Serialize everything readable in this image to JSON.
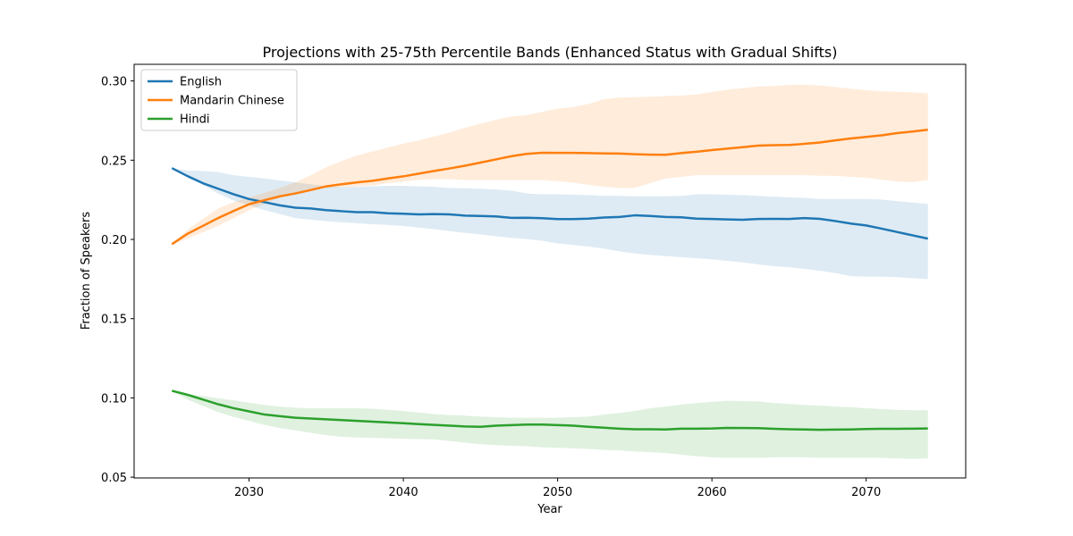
{
  "chart_data": {
    "type": "line",
    "title": "Projections with 25-75th Percentile Bands (Enhanced Status with Gradual Shifts)",
    "xlabel": "Year",
    "ylabel": "Fraction of Speakers",
    "xlim": [
      2022.55,
      2076.45
    ],
    "ylim": [
      0.0495,
      0.3105
    ],
    "xticks": [
      2030,
      2040,
      2050,
      2060,
      2070
    ],
    "yticks": [
      0.05,
      0.1,
      0.15,
      0.2,
      0.25,
      0.3
    ],
    "ytick_labels": [
      "0.05",
      "0.10",
      "0.15",
      "0.20",
      "0.25",
      "0.30"
    ],
    "grid": false,
    "legend_position": "upper left",
    "x": [
      2025,
      2026,
      2027,
      2028,
      2029,
      2030,
      2031,
      2032,
      2033,
      2034,
      2035,
      2036,
      2037,
      2038,
      2039,
      2040,
      2041,
      2042,
      2043,
      2044,
      2045,
      2046,
      2047,
      2048,
      2049,
      2050,
      2051,
      2052,
      2053,
      2054,
      2055,
      2056,
      2057,
      2058,
      2059,
      2060,
      2061,
      2062,
      2063,
      2064,
      2065,
      2066,
      2067,
      2068,
      2069,
      2070,
      2071,
      2072,
      2073,
      2074
    ],
    "series": [
      {
        "name": "English",
        "color": "#1f77b4",
        "values": [
          0.245,
          0.24,
          0.2355,
          0.232,
          0.2285,
          0.2255,
          0.2235,
          0.2215,
          0.22,
          0.2195,
          0.2185,
          0.2178,
          0.2172,
          0.2172,
          0.2165,
          0.2162,
          0.2158,
          0.216,
          0.2158,
          0.215,
          0.2148,
          0.2145,
          0.2136,
          0.2137,
          0.2134,
          0.2128,
          0.2128,
          0.2131,
          0.2138,
          0.2142,
          0.2152,
          0.2148,
          0.2142,
          0.214,
          0.2131,
          0.2129,
          0.2126,
          0.2124,
          0.2129,
          0.213,
          0.2129,
          0.2135,
          0.213,
          0.2116,
          0.21,
          0.2088,
          0.2068,
          0.2047,
          0.2026,
          0.2005
        ],
        "p25": [
          0.245,
          0.2405,
          0.2345,
          0.229,
          0.2245,
          0.2215,
          0.2185,
          0.216,
          0.2135,
          0.2125,
          0.2115,
          0.2108,
          0.2102,
          0.2096,
          0.2092,
          0.2085,
          0.2075,
          0.2065,
          0.2052,
          0.2042,
          0.2032,
          0.202,
          0.201,
          0.2002,
          0.1992,
          0.1975,
          0.1965,
          0.1955,
          0.1942,
          0.1925,
          0.1912,
          0.1902,
          0.1895,
          0.1888,
          0.1882,
          0.1875,
          0.1865,
          0.1855,
          0.1842,
          0.1832,
          0.1825,
          0.1815,
          0.1802,
          0.1788,
          0.1768,
          0.1765,
          0.1765,
          0.1762,
          0.1755,
          0.175
        ],
        "p75": [
          0.245,
          0.2435,
          0.2432,
          0.2425,
          0.2405,
          0.2395,
          0.2385,
          0.2372,
          0.236,
          0.2348,
          0.2335,
          0.233,
          0.2332,
          0.2335,
          0.2338,
          0.2338,
          0.2335,
          0.2332,
          0.2325,
          0.2322,
          0.232,
          0.2315,
          0.2308,
          0.229,
          0.2285,
          0.2285,
          0.2282,
          0.228,
          0.2275,
          0.2275,
          0.2272,
          0.2272,
          0.2272,
          0.2275,
          0.2285,
          0.2285,
          0.2282,
          0.228,
          0.2275,
          0.227,
          0.2265,
          0.2262,
          0.2255,
          0.2255,
          0.2255,
          0.2255,
          0.2252,
          0.2242,
          0.2232,
          0.2225
        ]
      },
      {
        "name": "Mandarin Chinese",
        "color": "#ff7f0e",
        "values": [
          0.197,
          0.2035,
          0.2085,
          0.2135,
          0.218,
          0.2222,
          0.2248,
          0.2272,
          0.229,
          0.2312,
          0.2335,
          0.2348,
          0.236,
          0.237,
          0.2385,
          0.2398,
          0.2415,
          0.2432,
          0.2448,
          0.2465,
          0.2485,
          0.2505,
          0.2525,
          0.254,
          0.2547,
          0.2546,
          0.2546,
          0.2545,
          0.2543,
          0.2542,
          0.2538,
          0.2535,
          0.2534,
          0.2545,
          0.2553,
          0.2564,
          0.2573,
          0.2582,
          0.2592,
          0.2595,
          0.2596,
          0.2603,
          0.2612,
          0.2625,
          0.2637,
          0.2647,
          0.2657,
          0.2671,
          0.2681,
          0.2692
        ],
        "p25": [
          0.197,
          0.2005,
          0.2045,
          0.2085,
          0.2135,
          0.2185,
          0.2225,
          0.2265,
          0.2295,
          0.2305,
          0.2325,
          0.233,
          0.2335,
          0.234,
          0.2355,
          0.2365,
          0.2375,
          0.238,
          0.238,
          0.2375,
          0.2375,
          0.2375,
          0.2375,
          0.2375,
          0.2375,
          0.2368,
          0.2358,
          0.2345,
          0.2332,
          0.2325,
          0.2325,
          0.2355,
          0.2385,
          0.2395,
          0.2405,
          0.2405,
          0.2405,
          0.2405,
          0.2405,
          0.2405,
          0.2405,
          0.2405,
          0.2402,
          0.2402,
          0.2395,
          0.239,
          0.2378,
          0.2365,
          0.2362,
          0.2375
        ],
        "p75": [
          0.197,
          0.206,
          0.213,
          0.2195,
          0.2235,
          0.2265,
          0.2295,
          0.2325,
          0.236,
          0.2405,
          0.2455,
          0.2495,
          0.253,
          0.2555,
          0.258,
          0.2605,
          0.2625,
          0.265,
          0.2675,
          0.2705,
          0.273,
          0.2755,
          0.2775,
          0.2785,
          0.2805,
          0.2825,
          0.2835,
          0.2855,
          0.2885,
          0.2895,
          0.2898,
          0.29,
          0.2905,
          0.2908,
          0.2915,
          0.293,
          0.2945,
          0.2955,
          0.2965,
          0.2968,
          0.2975,
          0.2975,
          0.2972,
          0.2962,
          0.295,
          0.2942,
          0.2935,
          0.2932,
          0.2928,
          0.2922
        ]
      },
      {
        "name": "Hindi",
        "color": "#2ca02c",
        "values": [
          0.1045,
          0.102,
          0.099,
          0.096,
          0.0935,
          0.0915,
          0.0895,
          0.0885,
          0.0875,
          0.087,
          0.0865,
          0.086,
          0.0855,
          0.085,
          0.0845,
          0.084,
          0.0835,
          0.083,
          0.0825,
          0.082,
          0.0818,
          0.0825,
          0.0828,
          0.0832,
          0.0832,
          0.0828,
          0.0825,
          0.0818,
          0.0812,
          0.0806,
          0.0802,
          0.0802,
          0.0801,
          0.0806,
          0.0806,
          0.0807,
          0.0811,
          0.081,
          0.0809,
          0.0805,
          0.0802,
          0.0801,
          0.0799,
          0.08,
          0.0801,
          0.0804,
          0.0805,
          0.0805,
          0.0806,
          0.0807
        ],
        "p25": [
          0.1045,
          0.099,
          0.095,
          0.091,
          0.088,
          0.0855,
          0.083,
          0.081,
          0.0795,
          0.078,
          0.0765,
          0.0755,
          0.075,
          0.0748,
          0.0745,
          0.0742,
          0.074,
          0.0738,
          0.0728,
          0.0718,
          0.0708,
          0.0702,
          0.0698,
          0.0695,
          0.0688,
          0.0685,
          0.0682,
          0.0678,
          0.0672,
          0.0668,
          0.0662,
          0.0658,
          0.0652,
          0.0642,
          0.0632,
          0.0625,
          0.0622,
          0.0622,
          0.0622,
          0.0625,
          0.0625,
          0.0625,
          0.0622,
          0.0622,
          0.0622,
          0.0622,
          0.0622,
          0.0618,
          0.0615,
          0.0618
        ],
        "p75": [
          0.1045,
          0.1025,
          0.1012,
          0.0998,
          0.0985,
          0.097,
          0.0955,
          0.0945,
          0.0938,
          0.0935,
          0.0935,
          0.0935,
          0.0935,
          0.0932,
          0.0925,
          0.0918,
          0.0908,
          0.0898,
          0.0892,
          0.0888,
          0.0882,
          0.0878,
          0.0875,
          0.0875,
          0.0875,
          0.0875,
          0.0878,
          0.0882,
          0.0895,
          0.0905,
          0.0918,
          0.0935,
          0.0945,
          0.0958,
          0.0968,
          0.0975,
          0.0982,
          0.098,
          0.0978,
          0.0968,
          0.0962,
          0.0955,
          0.0952,
          0.0945,
          0.0942,
          0.0935,
          0.093,
          0.0925,
          0.0922,
          0.0922
        ]
      }
    ]
  }
}
